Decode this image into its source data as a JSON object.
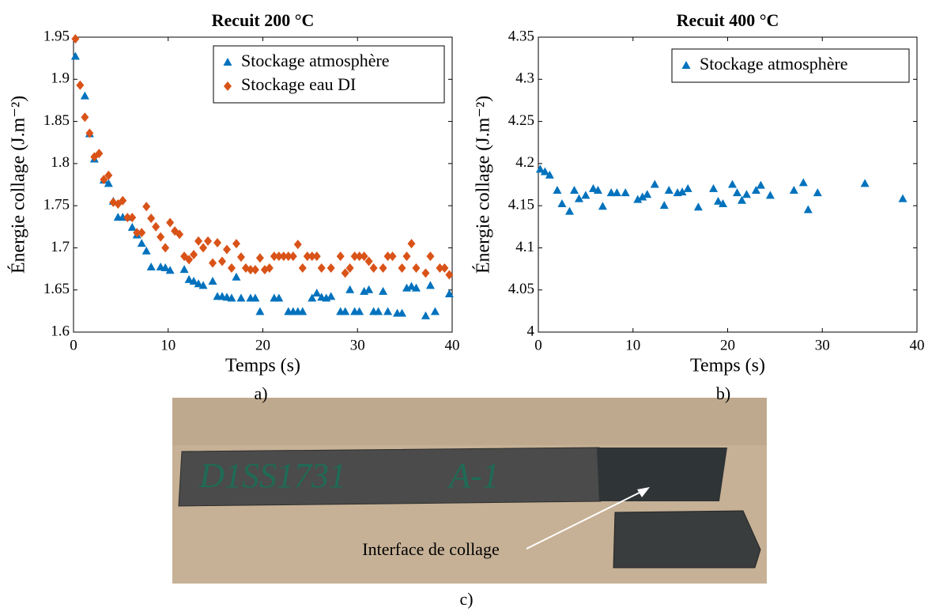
{
  "chart_data": [
    {
      "type": "scatter",
      "title": "Recuit 200 °C",
      "xlabel": "Temps (s)",
      "ylabel": "Énergie collage (J.m⁻²)",
      "panel_label": "a)",
      "xlim": [
        0,
        40
      ],
      "ylim": [
        1.6,
        1.95
      ],
      "xticks": [
        0,
        10,
        20,
        30,
        40
      ],
      "yticks": [
        1.6,
        1.65,
        1.7,
        1.75,
        1.8,
        1.85,
        1.9,
        1.95
      ],
      "legend": "upper right",
      "series": [
        {
          "name": "Stockage atmosphère",
          "color": "#0072bd",
          "marker": "triangle",
          "x": [
            0.2,
            1.2,
            1.7,
            2.2,
            3.2,
            3.7,
            4.2,
            4.7,
            5.2,
            5.7,
            6.2,
            6.7,
            7.2,
            7.7,
            8.2,
            9.2,
            9.7,
            10.2,
            11.7,
            12.2,
            12.7,
            13.2,
            13.7,
            14.7,
            15.2,
            15.7,
            16.2,
            16.7,
            17.2,
            17.7,
            18.7,
            19.2,
            19.7,
            21.2,
            21.7,
            22.7,
            23.2,
            23.7,
            24.2,
            25.2,
            25.7,
            26.2,
            26.7,
            27.2,
            28.2,
            28.7,
            29.2,
            29.7,
            30.2,
            30.7,
            31.2,
            31.7,
            32.2,
            32.7,
            33.2,
            34.2,
            34.7,
            35.2,
            35.7,
            36.2,
            37.2,
            37.7,
            38.2,
            39.7
          ],
          "values": [
            1.927,
            1.88,
            1.835,
            1.805,
            1.78,
            1.776,
            1.755,
            1.736,
            1.736,
            1.736,
            1.724,
            1.715,
            1.705,
            1.696,
            1.677,
            1.677,
            1.676,
            1.673,
            1.674,
            1.662,
            1.66,
            1.657,
            1.655,
            1.66,
            1.642,
            1.642,
            1.641,
            1.64,
            1.665,
            1.64,
            1.64,
            1.64,
            1.624,
            1.64,
            1.64,
            1.624,
            1.624,
            1.624,
            1.624,
            1.64,
            1.646,
            1.641,
            1.64,
            1.642,
            1.624,
            1.624,
            1.65,
            1.624,
            1.624,
            1.648,
            1.65,
            1.624,
            1.624,
            1.648,
            1.624,
            1.622,
            1.622,
            1.652,
            1.654,
            1.652,
            1.619,
            1.655,
            1.624,
            1.645
          ]
        },
        {
          "name": "Stockage eau DI",
          "color": "#d95319",
          "marker": "diamond",
          "x": [
            0.2,
            0.7,
            1.2,
            1.7,
            2.2,
            2.7,
            3.2,
            3.7,
            4.2,
            4.7,
            5.2,
            5.7,
            6.2,
            6.7,
            7.2,
            7.7,
            8.2,
            8.7,
            9.2,
            9.7,
            10.2,
            10.7,
            11.2,
            11.7,
            12.2,
            12.7,
            13.2,
            13.7,
            14.2,
            14.7,
            15.2,
            15.7,
            16.2,
            16.7,
            17.2,
            17.7,
            18.2,
            18.7,
            19.2,
            19.7,
            20.2,
            20.7,
            21.2,
            21.7,
            22.2,
            22.7,
            23.2,
            23.7,
            24.2,
            24.7,
            25.2,
            25.7,
            26.2,
            27.2,
            28.2,
            28.7,
            29.2,
            29.7,
            30.2,
            30.7,
            31.2,
            31.7,
            32.7,
            33.2,
            33.7,
            34.7,
            35.2,
            35.7,
            36.2,
            37.2,
            37.7,
            38.7,
            39.2,
            39.7
          ],
          "values": [
            1.948,
            1.893,
            1.855,
            1.836,
            1.808,
            1.812,
            1.781,
            1.786,
            1.754,
            1.752,
            1.756,
            1.736,
            1.736,
            1.718,
            1.718,
            1.749,
            1.735,
            1.725,
            1.713,
            1.7,
            1.73,
            1.72,
            1.716,
            1.69,
            1.686,
            1.692,
            1.708,
            1.7,
            1.708,
            1.682,
            1.706,
            1.684,
            1.698,
            1.676,
            1.705,
            1.689,
            1.676,
            1.674,
            1.674,
            1.688,
            1.674,
            1.676,
            1.69,
            1.69,
            1.69,
            1.69,
            1.69,
            1.704,
            1.676,
            1.69,
            1.69,
            1.69,
            1.676,
            1.676,
            1.69,
            1.67,
            1.676,
            1.69,
            1.69,
            1.69,
            1.684,
            1.676,
            1.676,
            1.69,
            1.69,
            1.676,
            1.69,
            1.705,
            1.676,
            1.67,
            1.69,
            1.676,
            1.676,
            1.668
          ]
        }
      ]
    },
    {
      "type": "scatter",
      "title": "Recuit 400 °C",
      "xlabel": "Temps (s)",
      "ylabel": "Énergie collage (J.m⁻²)",
      "panel_label": "b)",
      "xlim": [
        0,
        40
      ],
      "ylim": [
        4,
        4.35
      ],
      "xticks": [
        0,
        10,
        20,
        30,
        40
      ],
      "yticks": [
        4,
        4.05,
        4.1,
        4.15,
        4.2,
        4.25,
        4.3,
        4.35
      ],
      "legend": "upper right",
      "series": [
        {
          "name": "Stockage atmosphère",
          "color": "#0072bd",
          "marker": "triangle",
          "x": [
            0.2,
            0.7,
            1.2,
            2,
            2.5,
            3.3,
            3.8,
            4.3,
            5,
            5.8,
            6.3,
            6.8,
            7.7,
            8.3,
            9.2,
            10.5,
            11,
            11.5,
            12.3,
            13.3,
            13.8,
            14.7,
            15.2,
            15.8,
            16.9,
            18.5,
            19,
            19.5,
            20.5,
            21,
            21.5,
            22,
            23,
            23.5,
            24.5,
            27,
            28,
            28.5,
            29.5,
            34.5,
            38.5
          ],
          "values": [
            4.193,
            4.19,
            4.186,
            4.168,
            4.152,
            4.143,
            4.168,
            4.158,
            4.162,
            4.17,
            4.168,
            4.149,
            4.165,
            4.165,
            4.165,
            4.157,
            4.16,
            4.163,
            4.175,
            4.15,
            4.168,
            4.165,
            4.166,
            4.17,
            4.148,
            4.17,
            4.155,
            4.152,
            4.175,
            4.165,
            4.156,
            4.163,
            4.168,
            4.174,
            4.162,
            4.168,
            4.177,
            4.145,
            4.165,
            4.176,
            4.158
          ]
        }
      ]
    }
  ],
  "photo": {
    "caption": "c)",
    "annotation": "Interface de collage",
    "handwriting": [
      "D1SS1731",
      "A-1"
    ]
  }
}
